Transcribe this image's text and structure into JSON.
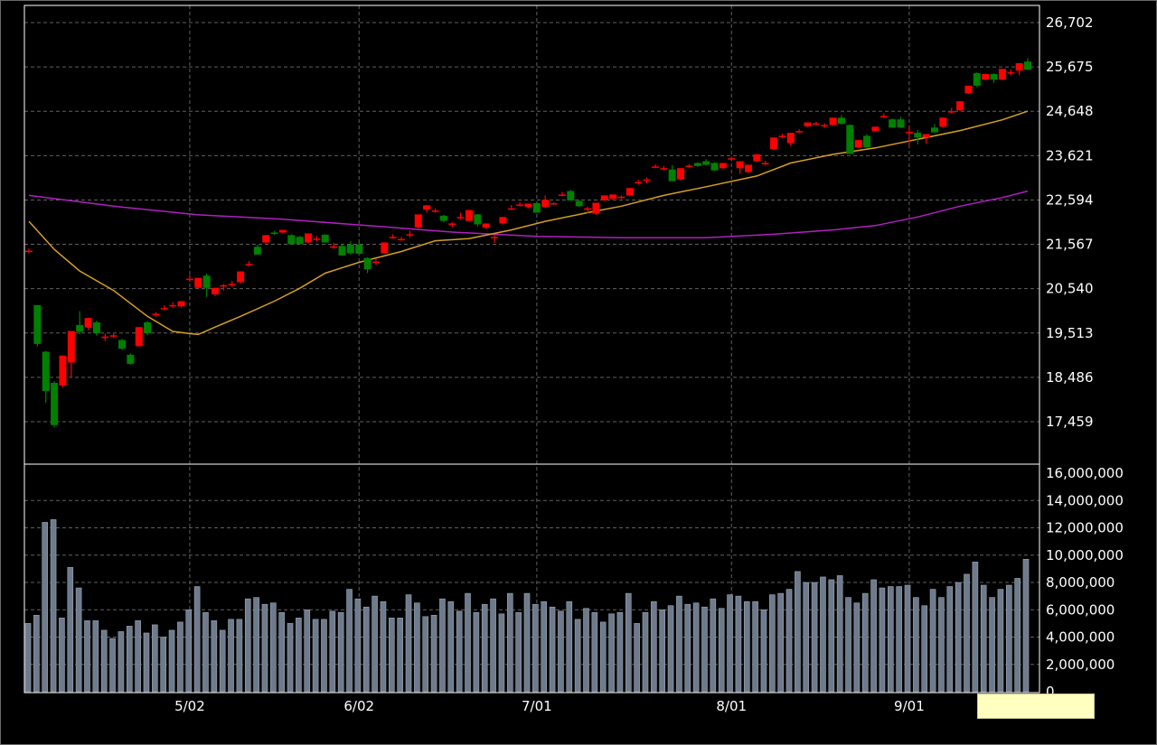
{
  "chart_data": {
    "type": "candlestick",
    "colors": {
      "up": "#ff0000",
      "down": "#008000",
      "ma_short": "#d4a020",
      "ma_long": "#b020c0",
      "volume": "#6e7b8c",
      "grid": "#606060",
      "background": "#000000"
    },
    "price_axis": {
      "min": 16946,
      "max": 27100,
      "ticks": [
        "26,702",
        "25,675",
        "24,648",
        "23,621",
        "22,594",
        "21,567",
        "20,540",
        "19,513",
        "18,486",
        "17,459"
      ],
      "tick_values": [
        26702,
        25675,
        24648,
        23621,
        22594,
        21567,
        20540,
        19513,
        18486,
        17459
      ]
    },
    "volume_axis": {
      "min": 0,
      "max": 16000000,
      "ticks": [
        "16,000,000",
        "14,000,000",
        "12,000,000",
        "10,000,000",
        "8,000,000",
        "6,000,000",
        "4,000,000",
        "2,000,000",
        "0"
      ],
      "tick_values": [
        16000000,
        14000000,
        12000000,
        10000000,
        8000000,
        6000000,
        4000000,
        2000000,
        0
      ]
    },
    "x_labels": [
      {
        "label": "5/02",
        "index": 19
      },
      {
        "label": "6/02",
        "index": 39
      },
      {
        "label": "7/01",
        "index": 60
      },
      {
        "label": "8/01",
        "index": 83
      },
      {
        "label": "9/01",
        "index": 104
      }
    ],
    "ohlc": [
      [
        21400,
        21470,
        21360,
        21420
      ],
      [
        20160,
        20160,
        19200,
        19260
      ],
      [
        19080,
        19100,
        17900,
        18170
      ],
      [
        18360,
        18400,
        17330,
        17380
      ],
      [
        18300,
        18990,
        18250,
        18990
      ],
      [
        18830,
        19560,
        18500,
        19560
      ],
      [
        19700,
        20020,
        19480,
        19540
      ],
      [
        19640,
        19860,
        19580,
        19860
      ],
      [
        19760,
        19800,
        19450,
        19510
      ],
      [
        19430,
        19500,
        19330,
        19430
      ],
      [
        19460,
        19520,
        19400,
        19460
      ],
      [
        19350,
        19380,
        19120,
        19150
      ],
      [
        19010,
        19040,
        18780,
        18800
      ],
      [
        19210,
        19650,
        19200,
        19650
      ],
      [
        19760,
        19790,
        19460,
        19510
      ],
      [
        19930,
        20000,
        19880,
        19960
      ],
      [
        20080,
        20160,
        20040,
        20090
      ],
      [
        20150,
        20230,
        20100,
        20160
      ],
      [
        20130,
        20250,
        20100,
        20250
      ],
      [
        20770,
        20860,
        20700,
        20770
      ],
      [
        20560,
        20790,
        20540,
        20790
      ],
      [
        20840,
        20890,
        20350,
        20560
      ],
      [
        20410,
        20560,
        20370,
        20560
      ],
      [
        20600,
        20650,
        20500,
        20620
      ],
      [
        20640,
        20720,
        20580,
        20650
      ],
      [
        20690,
        20940,
        20660,
        20940
      ],
      [
        21100,
        21180,
        21050,
        21110
      ],
      [
        21510,
        21560,
        21330,
        21330
      ],
      [
        21610,
        21780,
        21590,
        21780
      ],
      [
        21840,
        21880,
        21780,
        21830
      ],
      [
        21840,
        21900,
        21820,
        21900
      ],
      [
        21780,
        21800,
        21570,
        21570
      ],
      [
        21740,
        21760,
        21570,
        21570
      ],
      [
        21610,
        21820,
        21600,
        21820
      ],
      [
        21700,
        21760,
        21640,
        21700
      ],
      [
        21790,
        21800,
        21610,
        21610
      ],
      [
        21520,
        21600,
        21460,
        21520
      ],
      [
        21530,
        21560,
        21310,
        21310
      ],
      [
        21560,
        21640,
        21330,
        21360
      ],
      [
        21560,
        21640,
        21350,
        21350
      ],
      [
        21250,
        21270,
        20900,
        20990
      ],
      [
        21150,
        21230,
        21090,
        21170
      ],
      [
        21360,
        21610,
        21350,
        21610
      ],
      [
        21740,
        21800,
        21700,
        21740
      ],
      [
        21690,
        21740,
        21650,
        21690
      ],
      [
        21790,
        21880,
        21720,
        21800
      ],
      [
        21960,
        22260,
        21940,
        22260
      ],
      [
        22370,
        22470,
        22300,
        22470
      ],
      [
        22350,
        22400,
        22300,
        22350
      ],
      [
        22230,
        22250,
        22080,
        22110
      ],
      [
        22050,
        22080,
        21960,
        22050
      ],
      [
        22180,
        22300,
        22150,
        22200
      ],
      [
        22110,
        22360,
        22090,
        22360
      ],
      [
        22260,
        22270,
        21980,
        22030
      ],
      [
        21950,
        22050,
        21920,
        22050
      ],
      [
        21740,
        21790,
        21600,
        21740
      ],
      [
        22050,
        22200,
        22030,
        22200
      ],
      [
        22390,
        22480,
        22360,
        22400
      ],
      [
        22480,
        22540,
        22440,
        22490
      ],
      [
        22430,
        22510,
        22400,
        22510
      ],
      [
        22520,
        22540,
        22300,
        22300
      ],
      [
        22430,
        22700,
        22410,
        22600
      ],
      [
        22500,
        22540,
        22480,
        22520
      ],
      [
        22710,
        22780,
        22680,
        22720
      ],
      [
        22800,
        22830,
        22580,
        22580
      ],
      [
        22570,
        22600,
        22430,
        22450
      ],
      [
        22400,
        22440,
        22280,
        22400
      ],
      [
        22280,
        22530,
        22250,
        22530
      ],
      [
        22590,
        22700,
        22570,
        22700
      ],
      [
        22620,
        22720,
        22600,
        22720
      ],
      [
        22670,
        22700,
        22620,
        22670
      ],
      [
        22700,
        22870,
        22680,
        22870
      ],
      [
        23000,
        23060,
        22950,
        23010
      ],
      [
        23060,
        23120,
        22980,
        23070
      ],
      [
        23370,
        23420,
        23330,
        23370
      ],
      [
        23320,
        23380,
        23280,
        23330
      ],
      [
        23300,
        23400,
        23030,
        23030
      ],
      [
        23070,
        23330,
        23050,
        23330
      ],
      [
        23380,
        23420,
        23340,
        23390
      ],
      [
        23450,
        23470,
        23360,
        23380
      ],
      [
        23490,
        23540,
        23390,
        23410
      ],
      [
        23450,
        23470,
        23270,
        23280
      ],
      [
        23330,
        23450,
        23310,
        23450
      ],
      [
        23550,
        23600,
        23500,
        23560
      ],
      [
        23330,
        23490,
        23200,
        23490
      ],
      [
        23240,
        23410,
        23220,
        23410
      ],
      [
        23490,
        23650,
        23470,
        23650
      ],
      [
        23440,
        23500,
        23400,
        23450
      ],
      [
        23770,
        24040,
        23750,
        24040
      ],
      [
        24080,
        24130,
        24020,
        24080
      ],
      [
        23910,
        24150,
        23850,
        24150
      ],
      [
        24190,
        24230,
        24140,
        24190
      ],
      [
        24300,
        24390,
        24280,
        24390
      ],
      [
        24360,
        24410,
        24320,
        24370
      ],
      [
        24320,
        24370,
        24270,
        24330
      ],
      [
        24330,
        24500,
        24310,
        24500
      ],
      [
        24500,
        24560,
        24340,
        24360
      ],
      [
        24330,
        24340,
        23660,
        23660
      ],
      [
        23810,
        23980,
        23790,
        23980
      ],
      [
        24080,
        24120,
        23810,
        23810
      ],
      [
        24190,
        24290,
        24170,
        24290
      ],
      [
        24530,
        24600,
        24500,
        24540
      ],
      [
        24460,
        24480,
        24270,
        24270
      ],
      [
        24460,
        24520,
        24270,
        24270
      ],
      [
        24170,
        24300,
        23860,
        24170
      ],
      [
        24150,
        24220,
        23880,
        24040
      ],
      [
        24040,
        24120,
        23900,
        24120
      ],
      [
        24270,
        24350,
        24160,
        24160
      ],
      [
        24290,
        24500,
        24280,
        24500
      ],
      [
        24650,
        24730,
        24600,
        24650
      ],
      [
        24670,
        24880,
        24650,
        24880
      ],
      [
        25070,
        25240,
        25050,
        25240
      ],
      [
        25530,
        25550,
        25200,
        25240
      ],
      [
        25380,
        25510,
        25370,
        25510
      ],
      [
        25510,
        25530,
        25300,
        25380
      ],
      [
        25380,
        25630,
        25370,
        25630
      ],
      [
        25550,
        25620,
        25480,
        25550
      ],
      [
        25590,
        25760,
        25480,
        25760
      ],
      [
        25800,
        25880,
        25610,
        25610
      ]
    ],
    "volume": [
      5.0,
      5.6,
      12.4,
      12.6,
      5.4,
      9.1,
      7.6,
      5.2,
      5.2,
      4.5,
      3.9,
      4.4,
      4.8,
      5.2,
      4.3,
      4.9,
      4.0,
      4.5,
      5.1,
      6.0,
      7.7,
      5.8,
      5.2,
      4.5,
      5.3,
      5.3,
      6.8,
      6.9,
      6.4,
      6.5,
      5.8,
      5.0,
      5.4,
      6.0,
      5.3,
      5.3,
      5.9,
      5.8,
      7.5,
      6.8,
      6.2,
      7.0,
      6.6,
      5.4,
      5.4,
      7.1,
      6.5,
      5.5,
      5.6,
      6.8,
      6.6,
      5.9,
      7.2,
      5.8,
      6.4,
      6.8,
      5.7,
      7.2,
      5.8,
      7.2,
      6.4,
      6.6,
      6.2,
      5.9,
      6.6,
      5.3,
      6.1,
      5.8,
      5.1,
      5.7,
      5.8,
      7.2,
      5.0,
      5.8,
      6.6,
      6.0,
      6.3,
      7.0,
      6.4,
      6.5,
      6.2,
      6.8,
      6.1,
      7.1,
      7.0,
      6.6,
      6.6,
      6.0,
      7.1,
      7.2,
      7.5,
      8.8,
      8.0,
      8.0,
      8.4,
      8.2,
      8.5,
      6.9,
      6.5,
      7.2,
      8.2,
      7.6,
      7.7,
      7.7,
      7.8,
      6.9,
      6.3,
      7.5,
      6.9,
      7.7,
      8.0,
      8.6,
      9.5,
      7.8,
      6.9,
      7.5,
      7.8,
      8.3,
      9.7
    ],
    "volume_unit": 1000000,
    "ma_short": [
      [
        0,
        22100
      ],
      [
        3,
        21450
      ],
      [
        6,
        20950
      ],
      [
        10,
        20500
      ],
      [
        14,
        19900
      ],
      [
        17,
        19550
      ],
      [
        19,
        19500
      ],
      [
        20,
        19480
      ],
      [
        22,
        19650
      ],
      [
        25,
        19900
      ],
      [
        29,
        20250
      ],
      [
        32,
        20550
      ],
      [
        35,
        20900
      ],
      [
        39,
        21150
      ],
      [
        44,
        21400
      ],
      [
        48,
        21650
      ],
      [
        52,
        21700
      ],
      [
        57,
        21900
      ],
      [
        61,
        22100
      ],
      [
        66,
        22300
      ],
      [
        70,
        22450
      ],
      [
        75,
        22700
      ],
      [
        80,
        22900
      ],
      [
        86,
        23150
      ],
      [
        90,
        23450
      ],
      [
        95,
        23650
      ],
      [
        100,
        23800
      ],
      [
        105,
        24000
      ],
      [
        110,
        24200
      ],
      [
        115,
        24450
      ],
      [
        118,
        24650
      ]
    ],
    "ma_long": [
      [
        0,
        22700
      ],
      [
        10,
        22450
      ],
      [
        20,
        22250
      ],
      [
        30,
        22150
      ],
      [
        40,
        22000
      ],
      [
        50,
        21850
      ],
      [
        60,
        21750
      ],
      [
        70,
        21720
      ],
      [
        80,
        21720
      ],
      [
        88,
        21800
      ],
      [
        95,
        21900
      ],
      [
        100,
        22000
      ],
      [
        105,
        22200
      ],
      [
        110,
        22450
      ],
      [
        115,
        22650
      ],
      [
        118,
        22800
      ]
    ],
    "grid": true
  }
}
